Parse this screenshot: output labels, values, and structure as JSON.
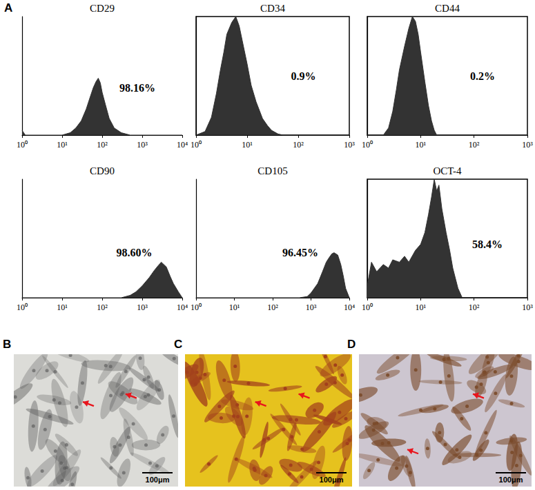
{
  "chart_data": [
    {
      "type": "area",
      "title": "CD29",
      "annotation": "98.16%",
      "log": "x",
      "color": "#333333",
      "tick_labels": "x",
      "xlim": [
        1,
        10000
      ],
      "xticks": [
        {
          "value": 1,
          "label": "10⁰"
        },
        {
          "value": 10,
          "label": "10¹"
        },
        {
          "value": 100,
          "label": "10²"
        },
        {
          "value": 1000,
          "label": "10³"
        },
        {
          "value": 10000,
          "label": "10⁴"
        }
      ],
      "ylim": [
        0,
        100
      ],
      "x": [
        1,
        1.2,
        10,
        16,
        22,
        30,
        40,
        50,
        60,
        70,
        80,
        90,
        100,
        120,
        150,
        200,
        300,
        500,
        10000
      ],
      "values": [
        4,
        0,
        0,
        2,
        6,
        12,
        22,
        32,
        40,
        45,
        48,
        44,
        36,
        26,
        14,
        6,
        2,
        0,
        0
      ]
    },
    {
      "type": "area",
      "title": "CD34",
      "annotation": "0.9%",
      "log": "x",
      "color": "#333333",
      "tick_labels": "x",
      "xlim": [
        1,
        1000
      ],
      "xticks": [
        {
          "value": 1,
          "label": "10⁰"
        },
        {
          "value": 10,
          "label": "10¹"
        },
        {
          "value": 100,
          "label": "10²"
        },
        {
          "value": 1000,
          "label": "10³"
        }
      ],
      "ylim": [
        0,
        100
      ],
      "x": [
        1,
        1.5,
        2,
        2.5,
        3,
        3.5,
        4,
        5,
        6,
        7,
        8,
        10,
        12,
        15,
        20,
        25,
        30,
        40,
        50,
        1000
      ],
      "values": [
        0,
        3,
        15,
        35,
        55,
        70,
        85,
        95,
        100,
        92,
        80,
        60,
        42,
        28,
        14,
        8,
        4,
        1,
        0,
        0
      ]
    },
    {
      "type": "area",
      "title": "CD44",
      "annotation": "0.2%",
      "log": "x",
      "color": "#333333",
      "tick_labels": "x",
      "xlim": [
        1,
        1000
      ],
      "xticks": [
        {
          "value": 1,
          "label": "10⁰"
        },
        {
          "value": 10,
          "label": "10¹"
        },
        {
          "value": 100,
          "label": "10²"
        },
        {
          "value": 1000,
          "label": "10³"
        }
      ],
      "ylim": [
        0,
        100
      ],
      "x": [
        1,
        2,
        2.5,
        3,
        3.5,
        4,
        5,
        6,
        7,
        8,
        9,
        10,
        12,
        14,
        16,
        18,
        20,
        1000
      ],
      "values": [
        0,
        0,
        6,
        20,
        38,
        55,
        75,
        90,
        100,
        96,
        85,
        70,
        45,
        25,
        12,
        4,
        0,
        0
      ]
    },
    {
      "type": "area",
      "title": "CD90",
      "annotation": "98.60%",
      "log": "x",
      "color": "#333333",
      "tick_labels": "x",
      "xlim": [
        1,
        10000
      ],
      "xticks": [
        {
          "value": 1,
          "label": "10⁰"
        },
        {
          "value": 10,
          "label": "10¹"
        },
        {
          "value": 100,
          "label": "10²"
        },
        {
          "value": 1000,
          "label": "10³"
        },
        {
          "value": 10000,
          "label": "10⁴"
        }
      ],
      "ylim": [
        0,
        100
      ],
      "x": [
        1,
        300,
        500,
        700,
        1000,
        1500,
        2000,
        2500,
        3000,
        4000,
        5000,
        6000,
        8000,
        10000
      ],
      "values": [
        0,
        0,
        2,
        5,
        10,
        17,
        23,
        27,
        30,
        26,
        18,
        12,
        5,
        0
      ]
    },
    {
      "type": "area",
      "title": "CD105",
      "annotation": "96.45%",
      "log": "x",
      "color": "#333333",
      "tick_labels": "x",
      "xlim": [
        1,
        10000
      ],
      "xticks": [
        {
          "value": 1,
          "label": "10⁰"
        },
        {
          "value": 10,
          "label": "10¹"
        },
        {
          "value": 100,
          "label": "10²"
        },
        {
          "value": 1000,
          "label": "10³"
        },
        {
          "value": 10000,
          "label": "10⁴"
        }
      ],
      "ylim": [
        0,
        100
      ],
      "x": [
        1,
        500,
        800,
        1000,
        1500,
        2000,
        2500,
        3000,
        3500,
        4000,
        5000,
        6000,
        7000,
        8000,
        10000
      ],
      "values": [
        0,
        0,
        1,
        4,
        12,
        22,
        30,
        34,
        37,
        38,
        36,
        28,
        18,
        8,
        0
      ]
    },
    {
      "type": "area",
      "title": "OCT-4",
      "annotation": "58.4%",
      "log": "x",
      "color": "#333333",
      "tick_labels": "x",
      "xlim": [
        1,
        1000
      ],
      "xticks": [
        {
          "value": 1,
          "label": "10⁰"
        },
        {
          "value": 10,
          "label": "10¹"
        },
        {
          "value": 100,
          "label": "10²"
        },
        {
          "value": 1000,
          "label": "10³"
        }
      ],
      "ylim": [
        0,
        100
      ],
      "x": [
        1,
        1.2,
        1.5,
        2,
        2.5,
        3,
        4,
        5,
        6,
        8,
        10,
        12,
        14,
        16,
        18,
        20,
        22,
        25,
        30,
        35,
        40,
        50,
        60,
        1000
      ],
      "values": [
        10,
        30,
        22,
        28,
        25,
        32,
        30,
        35,
        30,
        40,
        45,
        55,
        70,
        85,
        100,
        90,
        95,
        75,
        55,
        40,
        25,
        8,
        0,
        0
      ]
    }
  ],
  "figure": {
    "panel_label": "A",
    "micrographs": [
      {
        "label": "B",
        "scale_bar": "100μm"
      },
      {
        "label": "C",
        "scale_bar": "100μm"
      },
      {
        "label": "D",
        "scale_bar": "100μm"
      }
    ]
  }
}
